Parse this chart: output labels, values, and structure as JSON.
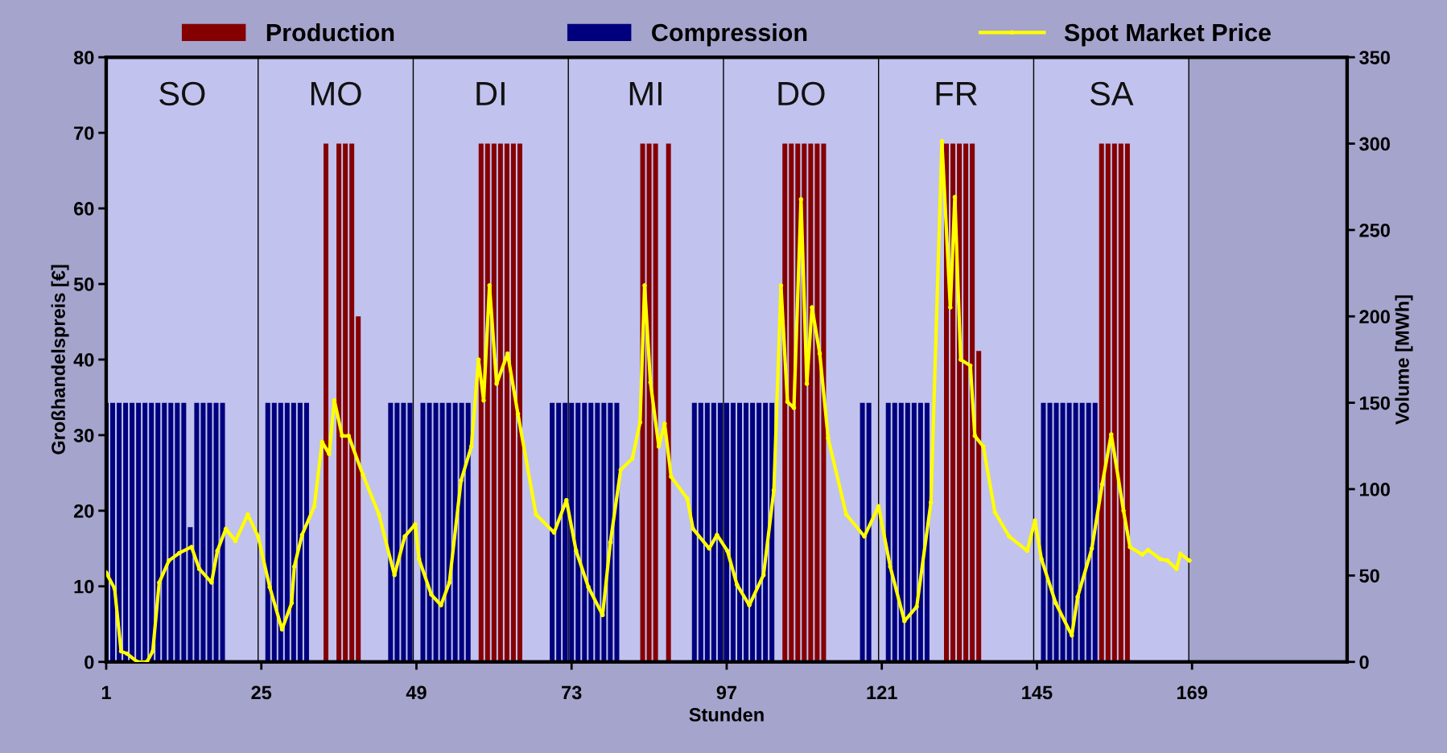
{
  "chart_data": {
    "type": "bar",
    "xlabel": "Stunden",
    "ylabel": "Großhandelspreis [€]",
    "y2label": "Volume [MWh]",
    "xlim": [
      1,
      193
    ],
    "xticks": [
      1,
      25,
      49,
      73,
      97,
      121,
      145,
      169
    ],
    "ylim": [
      0,
      80
    ],
    "yticks": [
      0,
      10,
      20,
      30,
      40,
      50,
      60,
      70,
      80
    ],
    "y2lim": [
      0,
      350
    ],
    "y2ticks": [
      0,
      50,
      100,
      150,
      200,
      250,
      300,
      350
    ],
    "legend": "top",
    "grid": false,
    "bands": [
      {
        "axis": "x",
        "from": 1,
        "to": 24.5,
        "label": "SO",
        "color": "#c2c2ee"
      },
      {
        "axis": "x",
        "from": 24.5,
        "to": 48.5,
        "label": "MO",
        "color": "#c2c2ee"
      },
      {
        "axis": "x",
        "from": 48.5,
        "to": 72.5,
        "label": "DI",
        "color": "#c2c2ee"
      },
      {
        "axis": "x",
        "from": 72.5,
        "to": 96.5,
        "label": "MI",
        "color": "#c2c2ee"
      },
      {
        "axis": "x",
        "from": 96.5,
        "to": 120.5,
        "label": "DO",
        "color": "#c2c2ee"
      },
      {
        "axis": "x",
        "from": 120.5,
        "to": 144.5,
        "label": "FR",
        "color": "#c2c2ee"
      },
      {
        "axis": "x",
        "from": 144.5,
        "to": 168.5,
        "label": "SA",
        "color": "#c2c2ee"
      }
    ],
    "ref_lines": [
      {
        "axis": "x",
        "value": 24.5,
        "color": "#000000"
      },
      {
        "axis": "x",
        "value": 48.5,
        "color": "#000000"
      },
      {
        "axis": "x",
        "value": 72.5,
        "color": "#000000"
      },
      {
        "axis": "x",
        "value": 96.5,
        "color": "#000000"
      },
      {
        "axis": "x",
        "value": 120.5,
        "color": "#000000"
      },
      {
        "axis": "x",
        "value": 144.5,
        "color": "#000000"
      },
      {
        "axis": "x",
        "value": 168.5,
        "color": "#000000"
      }
    ],
    "series": [
      {
        "name": "Production",
        "axis": "y2",
        "color": "#850000",
        "x": [
          35,
          37,
          38,
          39,
          40,
          59,
          60,
          61,
          62,
          63,
          64,
          65,
          84,
          85,
          86,
          88,
          106,
          107,
          108,
          109,
          110,
          111,
          112,
          131,
          132,
          133,
          134,
          135,
          136,
          155,
          156,
          157,
          158,
          159
        ],
        "values": [
          300,
          300,
          300,
          300,
          200,
          300,
          300,
          300,
          300,
          300,
          300,
          300,
          300,
          300,
          300,
          300,
          300,
          300,
          300,
          300,
          300,
          300,
          300,
          300,
          300,
          300,
          300,
          300,
          180,
          300,
          300,
          300,
          300,
          300
        ]
      },
      {
        "name": "Compression",
        "axis": "y2",
        "color": "#00007f",
        "x": [
          1,
          2,
          3,
          4,
          5,
          6,
          7,
          8,
          9,
          10,
          11,
          12,
          13,
          14,
          15,
          16,
          17,
          18,
          19,
          26,
          27,
          28,
          29,
          30,
          31,
          32,
          45,
          46,
          47,
          48,
          50,
          51,
          52,
          53,
          54,
          55,
          56,
          57,
          70,
          71,
          72,
          73,
          74,
          75,
          76,
          77,
          78,
          79,
          80,
          92,
          93,
          94,
          95,
          96,
          97,
          98,
          99,
          100,
          101,
          102,
          103,
          104,
          118,
          119,
          122,
          123,
          124,
          125,
          126,
          127,
          128,
          146,
          147,
          148,
          149,
          150,
          151,
          152,
          153,
          154
        ],
        "values": [
          150,
          150,
          150,
          150,
          150,
          150,
          150,
          150,
          150,
          150,
          150,
          150,
          150,
          78,
          150,
          150,
          150,
          150,
          150,
          150,
          150,
          150,
          150,
          150,
          150,
          150,
          150,
          150,
          150,
          150,
          150,
          150,
          150,
          150,
          150,
          150,
          150,
          150,
          150,
          150,
          150,
          150,
          150,
          150,
          150,
          150,
          150,
          150,
          150,
          150,
          150,
          150,
          150,
          150,
          150,
          150,
          150,
          150,
          150,
          150,
          150,
          150,
          150,
          150,
          150,
          150,
          150,
          150,
          150,
          150,
          150,
          150,
          150,
          150,
          150,
          150,
          150,
          150,
          150,
          150
        ]
      },
      {
        "name": "Spot Market Price",
        "type": "line",
        "axis": "y",
        "color": "#ffff00",
        "marker": "circle",
        "line_style": "solid",
        "x": [
          1,
          2.3,
          3.3,
          4.2,
          5.8,
          7.3,
          8.2,
          9.2,
          10.7,
          12.3,
          14.2,
          15.4,
          17.3,
          18.2,
          19.5,
          21,
          22.9,
          24.5,
          26.3,
          28.2,
          29.7,
          30.1,
          31.3,
          33.2,
          34.4,
          35.5,
          36.3,
          37.5,
          38.5,
          40.7,
          43.2,
          45.6,
          47.2,
          48.8,
          49.4,
          51.3,
          52.8,
          54.1,
          55.9,
          57.5,
          58.6,
          59.4,
          60.3,
          61.4,
          63.1,
          64.7,
          67.5,
          70.3,
          72.2,
          73.7,
          75.6,
          77.8,
          79,
          80.6,
          82.4,
          83.6,
          84.3,
          85.2,
          86.5,
          87.4,
          88.4,
          90.9,
          91.8,
          94.3,
          95.5,
          97.1,
          98.6,
          100.5,
          102.7,
          104.3,
          105.4,
          106.4,
          107.4,
          108.5,
          109.4,
          110.2,
          111.4,
          112.7,
          115.5,
          118.3,
          120.5,
          122.3,
          124.5,
          126.4,
          128.6,
          130.3,
          131.6,
          132.3,
          133.2,
          134.7,
          135.4,
          136.7,
          138.5,
          140.7,
          143.5,
          144.7,
          145.7,
          147.9,
          150.4,
          151.3,
          153.5,
          155.1,
          156.5,
          158.4,
          159.4,
          161.3,
          162.2,
          164.1,
          165.2,
          166.6,
          167.2,
          168.6
        ],
        "values": [
          11.8,
          9.7,
          1.4,
          1.1,
          0,
          0,
          1.4,
          10.5,
          13.4,
          14.4,
          15.2,
          12.3,
          10.5,
          14.7,
          17.6,
          16.0,
          19.5,
          16.6,
          9.9,
          4.3,
          7.8,
          12.6,
          16.8,
          20.6,
          29.1,
          27.5,
          34.6,
          29.9,
          29.9,
          24.8,
          19.5,
          11.5,
          16.6,
          18.2,
          13.6,
          8.9,
          7.5,
          10.5,
          24.0,
          28.5,
          40.0,
          34.6,
          49.8,
          36.8,
          40.8,
          32.8,
          19.5,
          17.1,
          21.4,
          14.7,
          9.9,
          6.2,
          15.8,
          25.4,
          26.9,
          31.7,
          49.8,
          37.0,
          28.5,
          31.5,
          24.5,
          21.6,
          17.6,
          15.0,
          16.8,
          14.7,
          10.2,
          7.5,
          11.5,
          22.7,
          49.8,
          34.4,
          33.6,
          61.2,
          36.8,
          46.9,
          40.8,
          29.6,
          19.5,
          16.6,
          20.6,
          12.6,
          5.4,
          7.3,
          21.1,
          68.9,
          46.9,
          61.5,
          40.0,
          39.2,
          29.9,
          28.5,
          19.8,
          16.6,
          14.7,
          18.7,
          13.6,
          7.8,
          3.5,
          8.6,
          15.0,
          23.5,
          30.1,
          20.0,
          15.2,
          14.2,
          14.8,
          13.6,
          13.4,
          12.3,
          14.3,
          13.4
        ]
      }
    ]
  }
}
